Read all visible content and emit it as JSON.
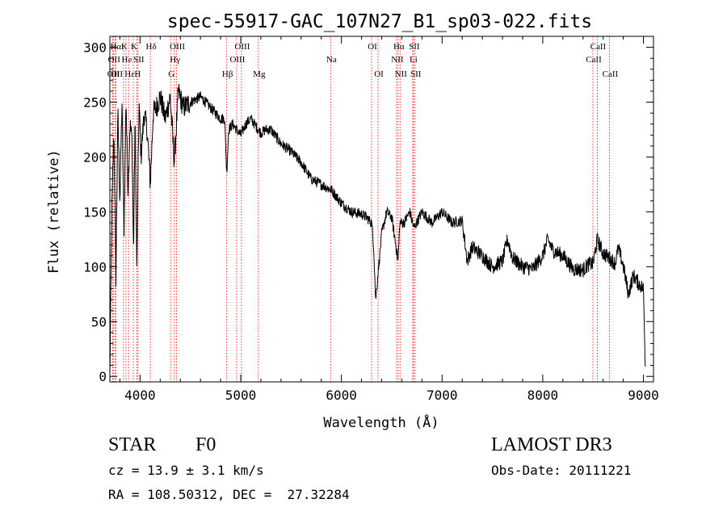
{
  "chart_data": {
    "type": "line",
    "title": "spec-55917-GAC_107N27_B1_sp03-022.fits",
    "xlabel": "Wavelength (Å)",
    "ylabel": "Flux (relative)",
    "xlim": [
      3700,
      9100
    ],
    "ylim": [
      -5,
      310
    ],
    "x_ticks": [
      4000,
      5000,
      6000,
      7000,
      8000,
      9000
    ],
    "y_ticks": [
      0,
      50,
      100,
      150,
      200,
      250,
      300
    ],
    "grid": false,
    "color": "#000000",
    "line_marker_color": "#ff0000",
    "series": [
      {
        "name": "flux",
        "x": [
          3700,
          3720,
          3740,
          3760,
          3780,
          3800,
          3820,
          3840,
          3860,
          3880,
          3900,
          3920,
          3935,
          3950,
          3968,
          3990,
          4010,
          4040,
          4070,
          4102,
          4130,
          4160,
          4200,
          4250,
          4300,
          4340,
          4380,
          4430,
          4500,
          4600,
          4700,
          4800,
          4840,
          4861,
          4880,
          4920,
          4960,
          5000,
          5050,
          5100,
          5150,
          5200,
          5250,
          5300,
          5400,
          5500,
          5600,
          5700,
          5800,
          5900,
          6000,
          6100,
          6200,
          6250,
          6300,
          6320,
          6340,
          6400,
          6450,
          6500,
          6540,
          6563,
          6580,
          6620,
          6680,
          6720,
          6800,
          6900,
          7000,
          7100,
          7200,
          7250,
          7300,
          7400,
          7500,
          7600,
          7650,
          7700,
          7800,
          7900,
          8000,
          8050,
          8100,
          8200,
          8300,
          8400,
          8450,
          8500,
          8542,
          8600,
          8662,
          8720,
          8750,
          8800,
          8850,
          8900,
          8950,
          9000,
          9020
        ],
        "values": [
          0,
          150,
          225,
          90,
          240,
          160,
          250,
          130,
          255,
          170,
          230,
          215,
          110,
          235,
          95,
          250,
          200,
          240,
          225,
          175,
          240,
          245,
          255,
          235,
          255,
          195,
          260,
          245,
          250,
          255,
          245,
          235,
          235,
          185,
          225,
          230,
          225,
          220,
          230,
          235,
          228,
          222,
          225,
          225,
          212,
          205,
          195,
          180,
          175,
          170,
          158,
          150,
          148,
          145,
          140,
          120,
          70,
          130,
          150,
          145,
          120,
          105,
          140,
          140,
          150,
          135,
          150,
          140,
          150,
          140,
          142,
          105,
          118,
          110,
          100,
          105,
          125,
          108,
          100,
          98,
          110,
          125,
          115,
          110,
          98,
          97,
          102,
          103,
          125,
          112,
          108,
          103,
          117,
          101,
          75,
          92,
          85,
          80,
          5
        ]
      }
    ],
    "spectral_lines": [
      {
        "wl": 3727,
        "label": "OII",
        "row": 3
      },
      {
        "wl": 3734,
        "label": "OII",
        "row": 2
      },
      {
        "wl": 3750,
        "label": "Hα",
        "row": 1
      },
      {
        "wl": 3760,
        "label": "OII",
        "row": 3
      },
      {
        "wl": 3835,
        "label": "K",
        "row": 1
      },
      {
        "wl": 3860,
        "label": "He",
        "row": 2
      },
      {
        "wl": 3889,
        "label": "Hε",
        "row": 3
      },
      {
        "wl": 3933,
        "label": "K",
        "row": 1
      },
      {
        "wl": 3968,
        "label": "H",
        "row": 3
      },
      {
        "wl": 3980,
        "label": "SII",
        "row": 2
      },
      {
        "wl": 4102,
        "label": "Hδ",
        "row": 1
      },
      {
        "wl": 4304,
        "label": "G",
        "row": 3
      },
      {
        "wl": 4340,
        "label": "Hγ",
        "row": 2
      },
      {
        "wl": 4363,
        "label": "OIII",
        "row": 1
      },
      {
        "wl": 4861,
        "label": "Hβ",
        "row": 3
      },
      {
        "wl": 4959,
        "label": "OIII",
        "row": 2
      },
      {
        "wl": 5007,
        "label": "OIII",
        "row": 1
      },
      {
        "wl": 5175,
        "label": "Mg",
        "row": 3
      },
      {
        "wl": 5893,
        "label": "Na",
        "row": 2
      },
      {
        "wl": 6300,
        "label": "OI",
        "row": 1
      },
      {
        "wl": 6364,
        "label": "OI",
        "row": 3
      },
      {
        "wl": 6548,
        "label": "NII",
        "row": 2
      },
      {
        "wl": 6563,
        "label": "Hα",
        "row": 1
      },
      {
        "wl": 6583,
        "label": "NII",
        "row": 3
      },
      {
        "wl": 6708,
        "label": "Li",
        "row": 2
      },
      {
        "wl": 6716,
        "label": "SII",
        "row": 1
      },
      {
        "wl": 6731,
        "label": "SII",
        "row": 3
      },
      {
        "wl": 8498,
        "label": "CaII",
        "row": 2
      },
      {
        "wl": 8542,
        "label": "CaII",
        "row": 1
      },
      {
        "wl": 8662,
        "label": "CaII",
        "row": 3
      }
    ]
  },
  "info": {
    "object_class": "STAR",
    "subclass": "F0",
    "cz": "cz = 13.9 ± 3.1 km/s",
    "coords": "RA = 108.50312, DEC =  27.32284",
    "survey": "LAMOST DR3",
    "obs_date": "Obs-Date: 20111221"
  }
}
